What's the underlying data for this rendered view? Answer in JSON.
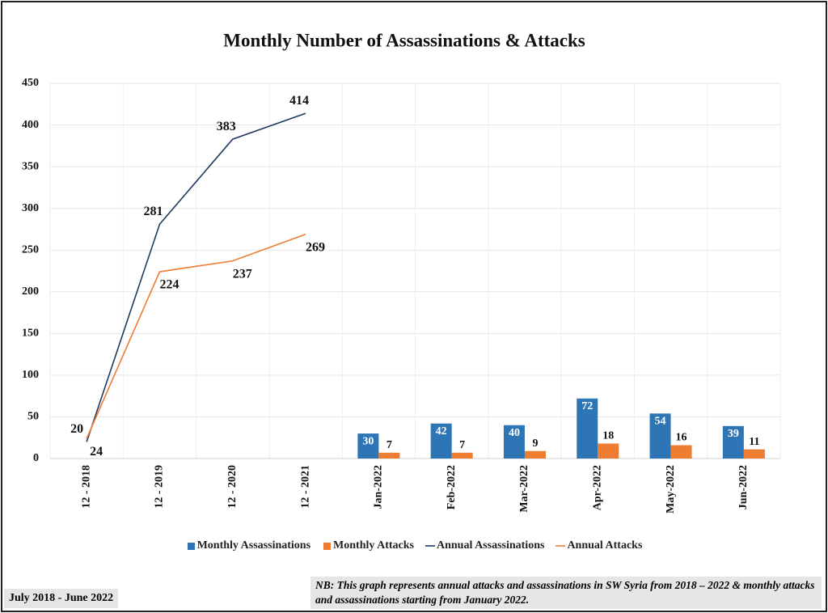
{
  "chart_data": {
    "type": "combo",
    "title": "Monthly Number of Assassinations & Attacks",
    "categories": [
      "12 - 2018",
      "12 - 2019",
      "12 - 2020",
      "12 - 2021",
      "Jan-2022",
      "Feb-2022",
      "Mar-2022",
      "Apr-2022",
      "May-2022",
      "Jun-2022"
    ],
    "series": [
      {
        "name": "Monthly Assassinations",
        "type": "bar",
        "color": "#2e75b6",
        "values": [
          null,
          null,
          null,
          null,
          30,
          42,
          40,
          72,
          54,
          39
        ]
      },
      {
        "name": "Monthly Attacks",
        "type": "bar",
        "color": "#ed7d31",
        "values": [
          null,
          null,
          null,
          null,
          7,
          7,
          9,
          18,
          16,
          11
        ]
      },
      {
        "name": "Annual Assassinations",
        "type": "line",
        "color": "#1f3864",
        "values": [
          20,
          281,
          383,
          414,
          null,
          null,
          null,
          null,
          null,
          null
        ]
      },
      {
        "name": "Annual Attacks",
        "type": "line",
        "color": "#ed7d31",
        "values": [
          24,
          224,
          237,
          269,
          null,
          null,
          null,
          null,
          null,
          null
        ]
      }
    ],
    "ylim": [
      0,
      450
    ],
    "yticks": [
      0,
      50,
      100,
      150,
      200,
      250,
      300,
      350,
      400,
      450
    ],
    "grid": true,
    "period_note": "July 2018 - June 2022",
    "note": "NB: This graph represents annual attacks and assassinations in SW Syria from 2018 – 2022 & monthly attacks and assassinations starting from January 2022."
  }
}
